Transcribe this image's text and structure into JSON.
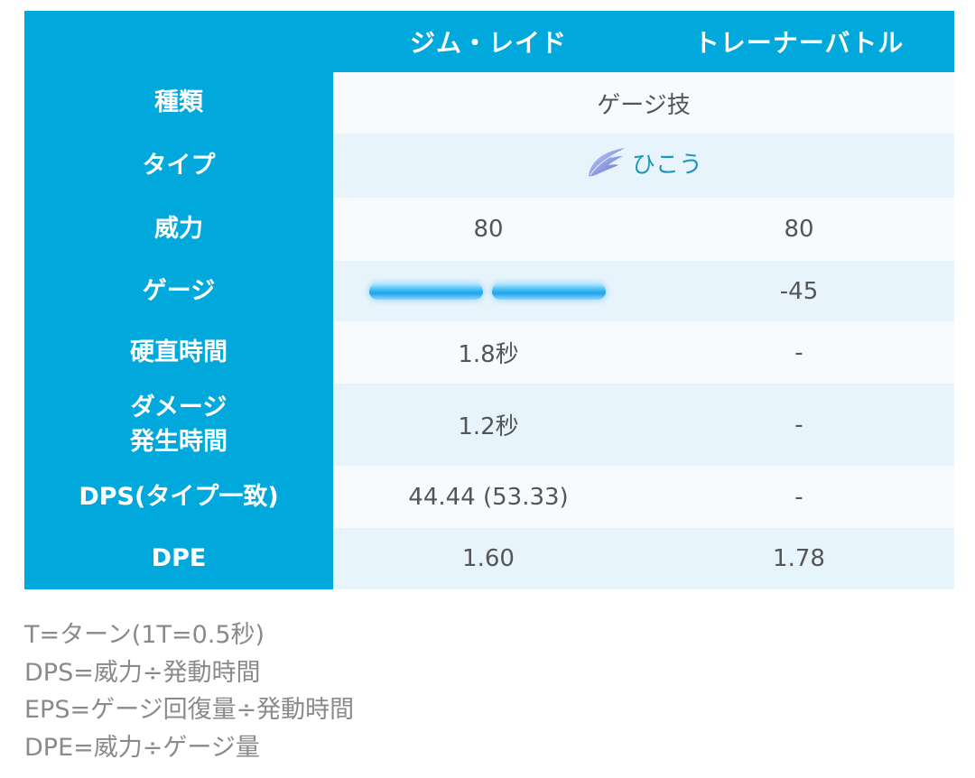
{
  "table": {
    "header": {
      "col1": "ジム・レイド",
      "col2": "トレーナーバトル"
    },
    "rows": {
      "kind": {
        "label": "種類",
        "value": "ゲージ技"
      },
      "type": {
        "label": "タイプ",
        "value": "ひこう",
        "icon": "wing-icon"
      },
      "power": {
        "label": "威力",
        "raid": "80",
        "pvp": "80"
      },
      "gauge": {
        "label": "ゲージ",
        "raid_segments": 2,
        "pvp": "-45"
      },
      "stiff": {
        "label": "硬直時間",
        "raid": "1.8秒",
        "pvp": "-"
      },
      "damage": {
        "label_line1": "ダメージ",
        "label_line2": "発生時間",
        "raid": "1.2秒",
        "pvp": "-"
      },
      "dps": {
        "label": "DPS(タイプ一致)",
        "raid": "44.44 (53.33)",
        "pvp": "-"
      },
      "dpe": {
        "label": "DPE",
        "raid": "1.60",
        "pvp": "1.78"
      }
    }
  },
  "notes": [
    "T=ターン(1T=0.5秒)",
    "DPS=威力÷発動時間",
    "EPS=ゲージ回復量÷発動時間",
    "DPE=威力÷ゲージ量"
  ],
  "colors": {
    "header_bg": "#00a8dc",
    "row_odd": "#f8fbfe",
    "row_even": "#e8f4fb",
    "type_text": "#1e96b8",
    "notes_text": "#8a8a8a"
  }
}
